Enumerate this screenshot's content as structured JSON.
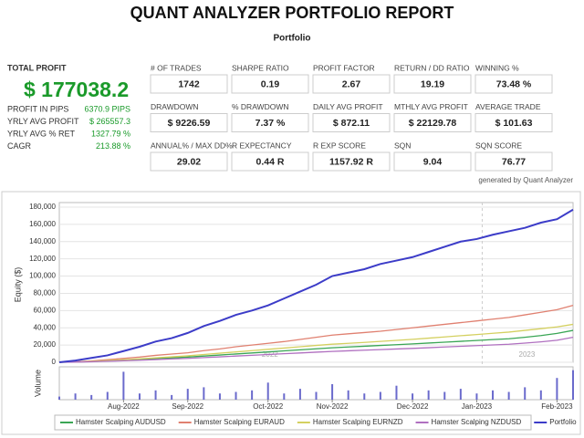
{
  "header": {
    "title": "QUANT ANALYZER PORTFOLIO REPORT",
    "subtitle": "Portfolio"
  },
  "summary": {
    "label": "TOTAL PROFIT",
    "value": "$ 177038.2",
    "rows": [
      {
        "label": "PROFIT IN PIPS",
        "value": "6370.9 PIPS"
      },
      {
        "label": "YRLY AVG PROFIT",
        "value": "$ 265557.3"
      },
      {
        "label": "YRLY AVG % RET",
        "value": "1327.79 %"
      },
      {
        "label": "CAGR",
        "value": "213.88 %"
      }
    ]
  },
  "stats": [
    [
      {
        "label": "# OF TRADES",
        "value": "1742"
      },
      {
        "label": "SHARPE RATIO",
        "value": "0.19"
      },
      {
        "label": "PROFIT FACTOR",
        "value": "2.67"
      },
      {
        "label": "RETURN / DD RATIO",
        "value": "19.19"
      },
      {
        "label": "WINNING %",
        "value": "73.48 %"
      }
    ],
    [
      {
        "label": "DRAWDOWN",
        "value": "$ 9226.59"
      },
      {
        "label": "% DRAWDOWN",
        "value": "7.37 %"
      },
      {
        "label": "DAILY AVG PROFIT",
        "value": "$ 872.11"
      },
      {
        "label": "MTHLY AVG PROFIT",
        "value": "$ 22129.78"
      },
      {
        "label": "AVERAGE TRADE",
        "value": "$ 101.63"
      }
    ],
    [
      {
        "label": "ANNUAL% / MAX DD%",
        "value": "29.02"
      },
      {
        "label": "R EXPECTANCY",
        "value": "0.44 R"
      },
      {
        "label": "R EXP SCORE",
        "value": "1157.92 R"
      },
      {
        "label": "SQN",
        "value": "9.04"
      },
      {
        "label": "SQN SCORE",
        "value": "76.77"
      }
    ]
  ],
  "footnote": "generated by Quant Analyzer",
  "chart_data": {
    "type": "line",
    "ylabel": "Equity ($)",
    "categories": [
      null,
      null,
      null,
      null,
      "Aug-2022",
      null,
      null,
      null,
      "Sep-2022",
      null,
      null,
      null,
      null,
      "Oct-2022",
      null,
      null,
      null,
      "Nov-2022",
      null,
      null,
      null,
      null,
      "Dec-2022",
      null,
      null,
      null,
      "Jan-2023",
      null,
      null,
      null,
      null,
      "Feb-2023",
      null
    ],
    "annotations": [
      "2022",
      "2023"
    ],
    "ylim": [
      0,
      180000
    ],
    "yticks": [
      0,
      {
        "value": 20000,
        "label": "20,000"
      },
      {
        "value": 40000,
        "label": "40,000"
      },
      {
        "value": 60000,
        "label": "60,000"
      },
      {
        "value": 80000,
        "label": "80,000"
      },
      {
        "value": 100000,
        "label": "100,000"
      },
      {
        "value": 120000,
        "label": "120,000"
      },
      {
        "value": 140000,
        "label": "140,000"
      },
      {
        "value": 160000,
        "label": "160,000"
      },
      {
        "value": 180000,
        "label": "180,000"
      }
    ],
    "grid": true,
    "series": [
      {
        "name": "Hamster Scalping AUDUSD",
        "color": "#3aa655",
        "values": [
          0,
          300,
          800,
          1600,
          2400,
          3200,
          4200,
          5100,
          6000,
          7200,
          8400,
          9600,
          10800,
          12000,
          13200,
          14400,
          15600,
          16800,
          17700,
          18600,
          19500,
          20400,
          21300,
          22300,
          23300,
          24300,
          25300,
          26300,
          27300,
          29000,
          31000,
          33500,
          37000
        ]
      },
      {
        "name": "Hamster Scalping EURAUD",
        "color": "#e08070",
        "values": [
          0,
          500,
          1500,
          3000,
          4500,
          6000,
          8000,
          9500,
          11000,
          13500,
          15500,
          18000,
          20000,
          22000,
          24000,
          26500,
          29000,
          31500,
          33000,
          34500,
          36000,
          38000,
          40000,
          42000,
          44000,
          46000,
          48000,
          50000,
          52000,
          55000,
          58000,
          61000,
          66000
        ]
      },
      {
        "name": "Hamster Scalping EURNZD",
        "color": "#d4d060",
        "values": [
          0,
          300,
          1000,
          2000,
          3000,
          4000,
          5200,
          6300,
          7500,
          9000,
          10500,
          12000,
          13500,
          15000,
          16500,
          18000,
          19500,
          21000,
          22000,
          23000,
          24200,
          25400,
          26600,
          28000,
          29400,
          30800,
          32200,
          33600,
          35000,
          37000,
          39000,
          41000,
          44000
        ]
      },
      {
        "name": "Hamster Scalping NZDUSD",
        "color": "#b070c0",
        "values": [
          0,
          200,
          600,
          1200,
          1800,
          2400,
          3100,
          3800,
          4500,
          5400,
          6300,
          7200,
          8100,
          9000,
          9900,
          10800,
          11700,
          12600,
          13300,
          14000,
          14700,
          15400,
          16100,
          16900,
          17700,
          18500,
          19300,
          20100,
          20900,
          22200,
          23700,
          25500,
          29000
        ]
      },
      {
        "name": "Portfolio",
        "color": "#3c3cc8",
        "values": [
          0,
          2000,
          5000,
          8000,
          13000,
          18000,
          24000,
          28000,
          34000,
          42000,
          48000,
          55000,
          60000,
          66000,
          74000,
          82000,
          90000,
          100000,
          104000,
          108000,
          114000,
          118000,
          122000,
          128000,
          134000,
          140000,
          143000,
          148000,
          152000,
          156000,
          162000,
          166000,
          177038.2
        ]
      }
    ],
    "volume": {
      "label": "Volume",
      "color": "#6a6acc",
      "ylim": [
        0,
        100
      ],
      "values": [
        10,
        20,
        15,
        25,
        90,
        20,
        30,
        15,
        35,
        40,
        20,
        25,
        30,
        55,
        20,
        35,
        25,
        50,
        30,
        20,
        25,
        45,
        20,
        30,
        25,
        35,
        20,
        30,
        25,
        40,
        30,
        70,
        95
      ]
    }
  }
}
